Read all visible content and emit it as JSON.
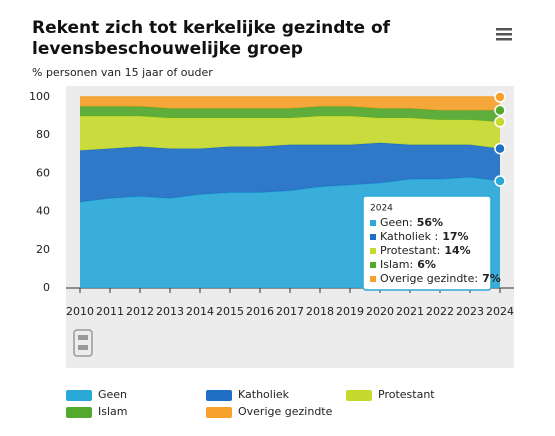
{
  "chart_data": {
    "type": "stacked-area",
    "title": [
      "Rekent zich tot kerkelijke gezindte of",
      "levensbeschouwelijke groep"
    ],
    "subtitle": "% personen van 15 jaar of ouder",
    "categories": [
      "2010",
      "2011",
      "2012",
      "2013",
      "2014",
      "2015",
      "2016",
      "2017",
      "2018",
      "2019",
      "2020",
      "2021",
      "2022",
      "2023",
      "2024"
    ],
    "series": [
      {
        "name": "Geen",
        "color": "#2aa8d8",
        "values": [
          45,
          47,
          48,
          47,
          49,
          50,
          50,
          51,
          53,
          54,
          55,
          57,
          57,
          58,
          56
        ]
      },
      {
        "name": "Katholiek",
        "color": "#1f6fc5",
        "values": [
          27,
          26,
          26,
          26,
          24,
          24,
          24,
          24,
          22,
          21,
          21,
          18,
          18,
          17,
          17
        ]
      },
      {
        "name": "Protestant",
        "color": "#c6d92e",
        "values": [
          18,
          17,
          16,
          16,
          16,
          15,
          15,
          14,
          15,
          15,
          13,
          14,
          13,
          13,
          14
        ]
      },
      {
        "name": "Islam",
        "color": "#53a82e",
        "values": [
          5,
          5,
          5,
          5,
          5,
          5,
          5,
          5,
          5,
          5,
          5,
          5,
          5,
          5,
          6
        ]
      },
      {
        "name": "Overige gezindte",
        "color": "#f5a12a",
        "values": [
          5,
          5,
          5,
          6,
          6,
          6,
          6,
          6,
          5,
          5,
          6,
          6,
          7,
          7,
          7
        ]
      }
    ],
    "ylim": [
      0,
      100
    ],
    "yticks": [
      0,
      20,
      40,
      60,
      80,
      100
    ],
    "grid": false,
    "tooltip": {
      "title": "2024",
      "lines": [
        {
          "label": "Geen:",
          "value": "56%"
        },
        {
          "label": "Katholiek :",
          "value": "17%"
        },
        {
          "label": "Protestant:",
          "value": "14%"
        },
        {
          "label": "Islam:",
          "value": "6%"
        },
        {
          "label": "Overige gezindte:",
          "value": "7%"
        }
      ]
    }
  }
}
